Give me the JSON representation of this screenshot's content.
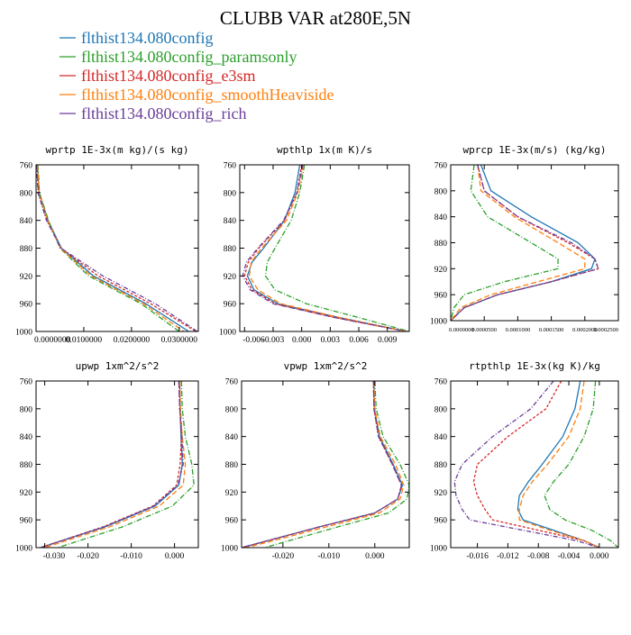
{
  "figure": {
    "title": "CLUBB VAR at280E,5N",
    "legend": [
      {
        "label": "flthist134.080config",
        "color": "#1f77b4"
      },
      {
        "label": "flthist134.080config_paramsonly",
        "color": "#2ca02c"
      },
      {
        "label": "flthist134.080config_e3sm",
        "color": "#d62728"
      },
      {
        "label": "flthist134.080config_smoothHeaviside",
        "color": "#ff7f0e"
      },
      {
        "label": "flthist134.080config_rich",
        "color": "#6a3d9a"
      }
    ]
  },
  "chart_data": [
    {
      "type": "line",
      "title": "wprtp  1E-3x(m kg)/(s kg)",
      "xlim": [
        0.0,
        0.034
      ],
      "ylim": [
        760,
        1000
      ],
      "y_inverted": true,
      "xticks": [
        0.0,
        0.01,
        0.02,
        0.03
      ],
      "xtick_labels": [
        "0.0000000",
        "0.0100000",
        "0.0200000",
        "0.0300000"
      ],
      "yticks": [
        760,
        800,
        840,
        880,
        920,
        960,
        1000
      ],
      "grid": false,
      "y": [
        760,
        800,
        840,
        880,
        920,
        960,
        1000
      ],
      "series": [
        {
          "name": "flthist134.080config",
          "x": [
            0.0003,
            0.0006,
            0.0025,
            0.0053,
            0.012,
            0.023,
            0.032
          ]
        },
        {
          "name": "flthist134.080config_paramsonly",
          "x": [
            0.0004,
            0.0007,
            0.0026,
            0.005,
            0.011,
            0.022,
            0.03
          ]
        },
        {
          "name": "flthist134.080config_e3sm",
          "x": [
            0.0002,
            0.0005,
            0.0023,
            0.0052,
            0.013,
            0.024,
            0.0335
          ]
        },
        {
          "name": "flthist134.080config_smoothHeaviside",
          "x": [
            0.0003,
            0.0006,
            0.0024,
            0.0051,
            0.0115,
            0.0225,
            0.031
          ]
        },
        {
          "name": "flthist134.080config_rich",
          "x": [
            0.0001,
            0.0004,
            0.0022,
            0.0052,
            0.014,
            0.025,
            0.0338
          ]
        }
      ]
    },
    {
      "type": "line",
      "title": "wpthlp  1x(m K)/s",
      "xlim": [
        -0.0065,
        0.0113
      ],
      "ylim": [
        760,
        1000
      ],
      "y_inverted": true,
      "xticks": [
        -0.006,
        -0.003,
        0.0,
        0.003,
        0.006,
        0.009
      ],
      "xtick_labels": [
        "-0.006",
        "-0.003",
        "0.000",
        "0.003",
        "0.006",
        "0.009"
      ],
      "yticks": [
        760,
        800,
        840,
        880,
        920,
        960,
        1000
      ],
      "grid": false,
      "y": [
        760,
        800,
        840,
        880,
        900,
        920,
        940,
        960,
        980,
        1000
      ],
      "series": [
        {
          "name": "flthist134.080config",
          "x": [
            -0.0002,
            -0.0007,
            -0.0018,
            -0.004,
            -0.0052,
            -0.0057,
            -0.005,
            -0.0025,
            0.004,
            0.011
          ]
        },
        {
          "name": "flthist134.080config_paramsonly",
          "x": [
            0.0003,
            -0.0002,
            -0.0011,
            -0.0028,
            -0.0036,
            -0.0038,
            -0.0028,
            0.0005,
            0.006,
            0.0113
          ]
        },
        {
          "name": "flthist134.080config_e3sm",
          "x": [
            0.0,
            -0.0005,
            -0.0018,
            -0.0045,
            -0.0056,
            -0.006,
            -0.0052,
            -0.0028,
            0.0035,
            0.011
          ]
        },
        {
          "name": "flthist134.080config_smoothHeaviside",
          "x": [
            0.0002,
            -0.0004,
            -0.0016,
            -0.0042,
            -0.0053,
            -0.0055,
            -0.0046,
            -0.0022,
            0.004,
            0.011
          ]
        },
        {
          "name": "flthist134.080config_rich",
          "x": [
            0.0001,
            -0.0005,
            -0.0019,
            -0.0046,
            -0.0058,
            -0.0062,
            -0.0054,
            -0.003,
            0.0035,
            0.011
          ]
        }
      ]
    },
    {
      "type": "line",
      "title": "wprcp  1E-3x(m/s) (kg/kg)",
      "xlim": [
        0.0,
        0.00025
      ],
      "ylim": [
        760,
        1000
      ],
      "y_inverted": true,
      "xticks": [
        0.0,
        5e-05,
        0.0001,
        0.00015,
        0.0002,
        0.00025
      ],
      "xtick_labels": [
        "0.0000000",
        "0.0000500",
        "0.0001000",
        "0.0001500",
        "0.0002000",
        "0.0002500"
      ],
      "yticks": [
        760,
        800,
        840,
        880,
        920,
        960,
        1000
      ],
      "grid": false,
      "y": [
        760,
        800,
        840,
        880,
        905,
        920,
        940,
        960,
        980,
        1000
      ],
      "series": [
        {
          "name": "flthist134.080config",
          "x": [
            4.5e-05,
            6e-05,
            0.00012,
            0.00019,
            0.000215,
            0.00021,
            0.00015,
            7e-05,
            2e-05,
            0.0
          ]
        },
        {
          "name": "flthist134.080config_paramsonly",
          "x": [
            3.5e-05,
            3e-05,
            5.5e-05,
            0.00012,
            0.00016,
            0.00016,
            8e-05,
            2e-05,
            5e-06,
            0.0
          ]
        },
        {
          "name": "flthist134.080config_e3sm",
          "x": [
            4e-05,
            5e-05,
            0.0001,
            0.000175,
            0.000215,
            0.00022,
            0.00015,
            7e-05,
            2e-05,
            0.0
          ]
        },
        {
          "name": "flthist134.080config_smoothHeaviside",
          "x": [
            4e-05,
            4.5e-05,
            9.5e-05,
            0.00016,
            0.0002,
            0.0002,
            0.00013,
            6e-05,
            1.5e-05,
            0.0
          ]
        },
        {
          "name": "flthist134.080config_rich",
          "x": [
            4e-05,
            5e-05,
            0.0001,
            0.00018,
            0.000215,
            0.00022,
            0.00015,
            7e-05,
            2e-05,
            0.0
          ]
        }
      ]
    },
    {
      "type": "line",
      "title": "upwp  1xm^2/s^2",
      "xlim": [
        -0.032,
        0.0055
      ],
      "ylim": [
        760,
        1000
      ],
      "y_inverted": true,
      "xticks": [
        -0.03,
        -0.02,
        -0.01,
        0.0
      ],
      "xtick_labels": [
        "-0.030",
        "-0.020",
        "-0.010",
        "0.000"
      ],
      "yticks": [
        760,
        800,
        840,
        880,
        920,
        960,
        1000
      ],
      "grid": false,
      "y": [
        760,
        800,
        840,
        880,
        910,
        940,
        970,
        1000
      ],
      "series": [
        {
          "name": "flthist134.080config",
          "x": [
            0.0012,
            0.0013,
            0.0015,
            0.0018,
            0.001,
            -0.0045,
            -0.016,
            -0.031
          ]
        },
        {
          "name": "flthist134.080config_paramsonly",
          "x": [
            0.0016,
            0.0018,
            0.0025,
            0.004,
            0.0045,
            -0.0005,
            -0.012,
            -0.027
          ]
        },
        {
          "name": "flthist134.080config_e3sm",
          "x": [
            0.001,
            0.0012,
            0.0016,
            0.0013,
            0.0005,
            -0.005,
            -0.0165,
            -0.031
          ]
        },
        {
          "name": "flthist134.080config_smoothHeaviside",
          "x": [
            0.0012,
            0.0014,
            0.0018,
            0.0025,
            0.002,
            -0.0035,
            -0.015,
            -0.03
          ]
        },
        {
          "name": "flthist134.080config_rich",
          "x": [
            0.001,
            0.0012,
            0.0017,
            0.002,
            0.0008,
            -0.0048,
            -0.0163,
            -0.031
          ]
        }
      ]
    },
    {
      "type": "line",
      "title": "vpwp  1xm^2/s^2",
      "xlim": [
        -0.029,
        0.0075
      ],
      "ylim": [
        760,
        1000
      ],
      "y_inverted": true,
      "xticks": [
        -0.02,
        -0.01,
        0.0
      ],
      "xtick_labels": [
        "-0.020",
        "-0.010",
        "0.000"
      ],
      "yticks": [
        760,
        800,
        840,
        880,
        920,
        960,
        1000
      ],
      "grid": false,
      "y": [
        760,
        800,
        840,
        880,
        910,
        930,
        950,
        970,
        1000
      ],
      "series": [
        {
          "name": "flthist134.080config",
          "x": [
            -0.0002,
            -0.0001,
            0.001,
            0.004,
            0.006,
            0.005,
            0.0,
            -0.012,
            -0.029
          ]
        },
        {
          "name": "flthist134.080config_paramsonly",
          "x": [
            0.0,
            0.0003,
            0.0018,
            0.0055,
            0.0075,
            0.007,
            0.003,
            -0.008,
            -0.024
          ]
        },
        {
          "name": "flthist134.080config_e3sm",
          "x": [
            -0.0003,
            -0.0002,
            0.0008,
            0.0038,
            0.0058,
            0.005,
            0.0,
            -0.012,
            -0.029
          ]
        },
        {
          "name": "flthist134.080config_smoothHeaviside",
          "x": [
            -0.0002,
            0.0,
            0.0012,
            0.0045,
            0.0063,
            0.0055,
            0.001,
            -0.0105,
            -0.028
          ]
        },
        {
          "name": "flthist134.080config_rich",
          "x": [
            -0.0003,
            -0.0002,
            0.0008,
            0.0038,
            0.0058,
            0.005,
            0.0,
            -0.012,
            -0.029
          ]
        }
      ]
    },
    {
      "type": "line",
      "title": "rtpthlp  1E-3x(kg K)/kg",
      "xlim": [
        -0.0195,
        0.0025
      ],
      "ylim": [
        760,
        1000
      ],
      "y_inverted": true,
      "xticks": [
        -0.016,
        -0.012,
        -0.008,
        -0.004,
        0.0
      ],
      "xtick_labels": [
        "-0.016",
        "-0.012",
        "-0.008",
        "-0.004",
        "0.000"
      ],
      "yticks": [
        760,
        800,
        840,
        880,
        920,
        960,
        1000
      ],
      "grid": false,
      "y": [
        760,
        800,
        840,
        880,
        905,
        925,
        945,
        960,
        975,
        990,
        1000
      ],
      "series": [
        {
          "name": "flthist134.080config",
          "x": [
            -0.0025,
            -0.0032,
            -0.0048,
            -0.0075,
            -0.0093,
            -0.0105,
            -0.0107,
            -0.01,
            -0.006,
            -0.002,
            0.0
          ]
        },
        {
          "name": "flthist134.080config_paramsonly",
          "x": [
            -0.0005,
            -0.0008,
            -0.002,
            -0.004,
            -0.006,
            -0.0072,
            -0.0065,
            -0.0045,
            -0.001,
            0.0015,
            0.0025
          ]
        },
        {
          "name": "flthist134.080config_e3sm",
          "x": [
            -0.005,
            -0.007,
            -0.012,
            -0.016,
            -0.0165,
            -0.016,
            -0.015,
            -0.014,
            -0.008,
            -0.002,
            0.0
          ]
        },
        {
          "name": "flthist134.080config_smoothHeaviside",
          "x": [
            -0.002,
            -0.0025,
            -0.004,
            -0.0068,
            -0.0088,
            -0.01,
            -0.0105,
            -0.0105,
            -0.0065,
            -0.002,
            0.0
          ]
        },
        {
          "name": "flthist134.080config_rich",
          "x": [
            -0.006,
            -0.009,
            -0.014,
            -0.018,
            -0.019,
            -0.0188,
            -0.018,
            -0.017,
            -0.01,
            -0.003,
            0.0
          ]
        }
      ]
    }
  ]
}
